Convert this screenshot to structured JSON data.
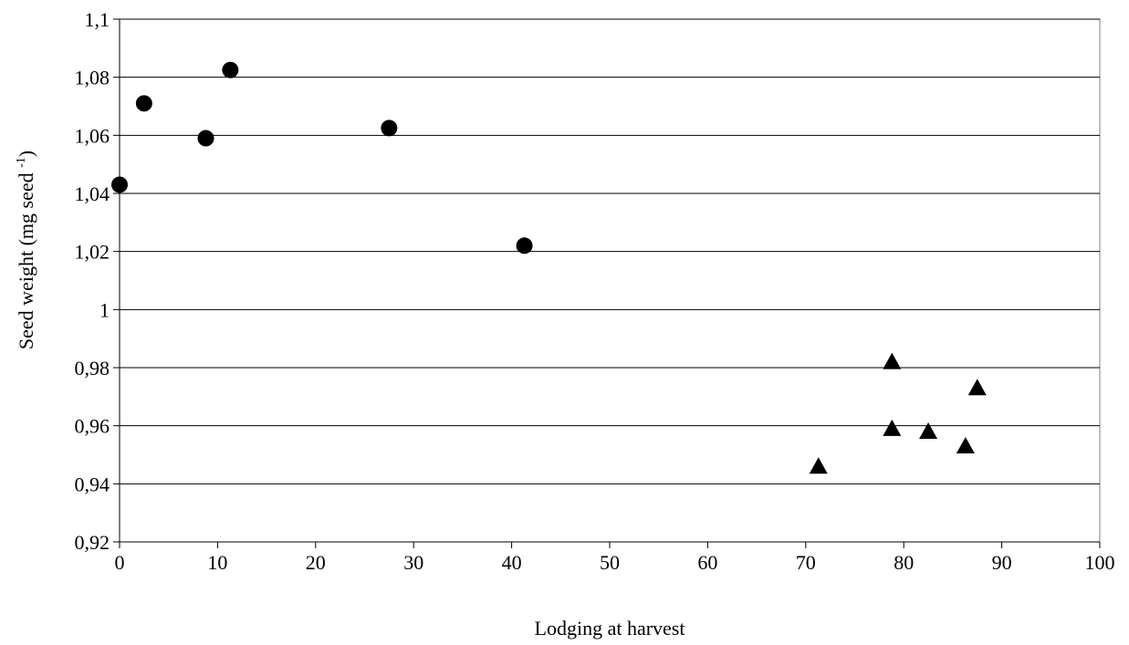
{
  "chart_data": {
    "type": "scatter",
    "title": "",
    "xlabel": "Lodging at harvest",
    "ylabel": {
      "prefix": "Seed weight (mg seed ",
      "superscript": "-1",
      "suffix": ")"
    },
    "xlim": [
      0,
      100
    ],
    "ylim": [
      0.92,
      1.1
    ],
    "x_ticks": [
      0,
      10,
      20,
      30,
      40,
      50,
      60,
      70,
      80,
      90,
      100
    ],
    "x_tick_labels": [
      "0",
      "10",
      "20",
      "30",
      "40",
      "50",
      "60",
      "70",
      "80",
      "90",
      "100"
    ],
    "y_ticks": [
      0.92,
      0.94,
      0.96,
      0.98,
      1.0,
      1.02,
      1.04,
      1.06,
      1.08,
      1.1
    ],
    "y_tick_labels": [
      "0,92",
      "0,94",
      "0,96",
      "0,98",
      "1",
      "1,02",
      "1,04",
      "1,06",
      "1,08",
      "1,1"
    ],
    "grid": "horizontal",
    "series": [
      {
        "marker": "circle",
        "color": "#000000",
        "points": [
          {
            "x": 0,
            "y": 1.043
          },
          {
            "x": 2.5,
            "y": 1.071
          },
          {
            "x": 8.8,
            "y": 1.059
          },
          {
            "x": 11.3,
            "y": 1.0825
          },
          {
            "x": 27.5,
            "y": 1.0625
          },
          {
            "x": 41.3,
            "y": 1.022
          }
        ]
      },
      {
        "marker": "triangle",
        "color": "#000000",
        "points": [
          {
            "x": 71.3,
            "y": 0.946
          },
          {
            "x": 78.8,
            "y": 0.982
          },
          {
            "x": 78.8,
            "y": 0.959
          },
          {
            "x": 82.5,
            "y": 0.958
          },
          {
            "x": 86.3,
            "y": 0.953
          },
          {
            "x": 87.5,
            "y": 0.973
          }
        ]
      }
    ]
  }
}
